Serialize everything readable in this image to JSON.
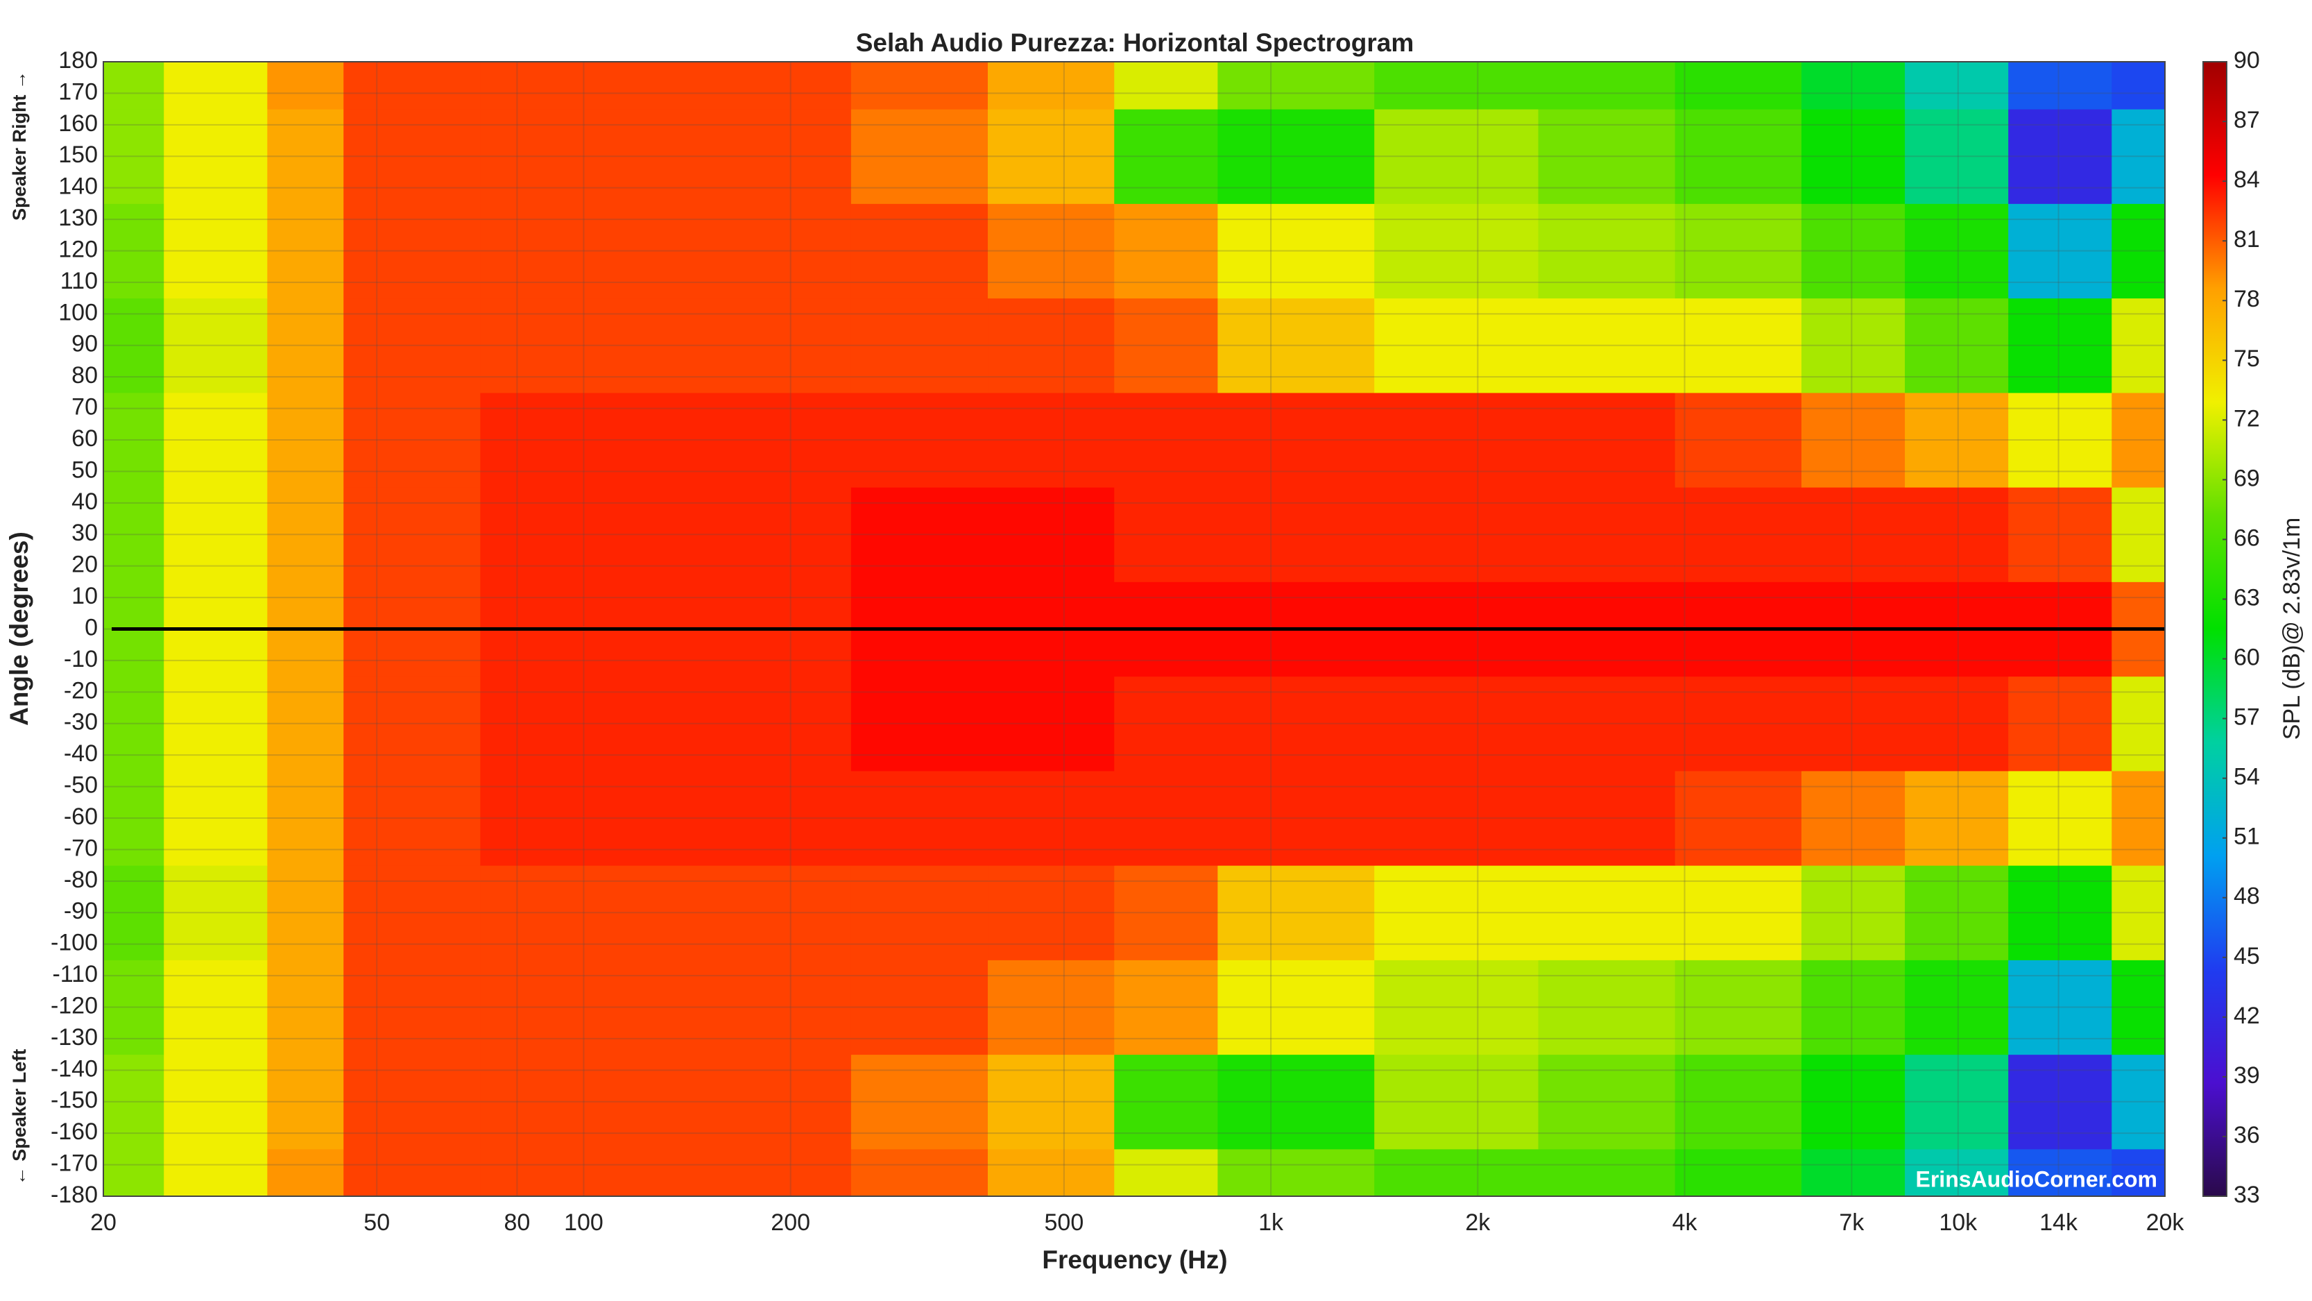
{
  "chart_data": {
    "type": "heatmap",
    "title": "Selah Audio Purezza: Horizontal Spectrogram",
    "x_label": "Frequency (Hz)",
    "y_label": "Angle (degrees)",
    "y_label_top": "Speaker Right →",
    "y_label_bottom": "← Speaker Left",
    "colorbar_label": "SPL (dB)@ 2.83v/1m",
    "watermark": "ErinsAudioCorner.com",
    "x_scale": "log",
    "xlim": [
      20,
      20000
    ],
    "xticks": [
      20,
      50,
      80,
      100,
      200,
      500,
      {
        "value": 1000,
        "label": "1k"
      },
      {
        "value": 2000,
        "label": "2k"
      },
      {
        "value": 4000,
        "label": "4k"
      },
      {
        "value": 7000,
        "label": "7k"
      },
      {
        "value": 10000,
        "label": "10k"
      },
      {
        "value": 14000,
        "label": "14k"
      },
      {
        "value": 20000,
        "label": "20k"
      }
    ],
    "ylim": [
      -180,
      180
    ],
    "yticks": [
      -180,
      -170,
      -160,
      -150,
      -140,
      -130,
      -120,
      -110,
      -100,
      -90,
      -80,
      -70,
      -60,
      -50,
      -40,
      -30,
      -20,
      -10,
      0,
      10,
      20,
      30,
      40,
      50,
      60,
      70,
      80,
      90,
      100,
      110,
      120,
      130,
      140,
      150,
      160,
      170,
      180
    ],
    "grid": true,
    "hline": 0,
    "clim": [
      33,
      90
    ],
    "cticks": [
      33,
      36,
      39,
      42,
      45,
      48,
      51,
      54,
      57,
      60,
      63,
      66,
      69,
      72,
      75,
      78,
      81,
      84,
      87,
      90
    ],
    "colormap": [
      "#2a0a4a",
      "#4b0fd0",
      "#1f3cf0",
      "#00a0f0",
      "#00d0a0",
      "#00e000",
      "#60e000",
      "#f0f000",
      "#ffa000",
      "#ff0000",
      "#a00000"
    ],
    "x": [
      20,
      30,
      40,
      50,
      100,
      200,
      300,
      500,
      700,
      1000,
      2000,
      3000,
      5000,
      7000,
      10000,
      14000,
      20000
    ],
    "y": [
      -180,
      -150,
      -120,
      -90,
      -60,
      -30,
      0,
      30,
      60,
      90,
      120,
      150,
      180
    ],
    "z": [
      [
        69,
        73,
        79,
        82,
        82,
        82,
        81,
        78,
        72,
        68,
        66,
        66,
        64,
        60,
        55,
        46,
        45
      ],
      [
        69,
        73,
        78,
        82,
        82,
        82,
        80,
        77,
        65,
        63,
        70,
        68,
        66,
        62,
        57,
        42,
        52
      ],
      [
        68,
        73,
        78,
        82,
        82,
        82,
        82,
        80,
        79,
        73,
        71,
        70,
        69,
        66,
        63,
        52,
        62
      ],
      [
        67,
        72,
        78,
        82,
        82,
        82,
        82,
        82,
        81,
        76,
        73,
        73,
        73,
        70,
        67,
        62,
        72
      ],
      [
        68,
        73,
        78,
        82,
        83,
        83,
        83,
        83,
        83,
        83,
        83,
        83,
        82,
        80,
        78,
        73,
        79
      ],
      [
        68,
        73,
        78,
        82,
        83,
        83,
        84,
        84,
        83,
        83,
        83,
        83,
        83,
        83,
        83,
        82,
        72
      ],
      [
        68,
        73,
        78,
        82,
        83,
        83,
        84,
        84,
        84,
        84,
        84,
        84,
        84,
        84,
        84,
        84,
        81
      ],
      [
        68,
        73,
        78,
        82,
        83,
        83,
        84,
        84,
        83,
        83,
        83,
        83,
        83,
        83,
        83,
        82,
        72
      ],
      [
        68,
        73,
        78,
        82,
        83,
        83,
        83,
        83,
        83,
        83,
        83,
        83,
        82,
        80,
        78,
        73,
        79
      ],
      [
        67,
        72,
        78,
        82,
        82,
        82,
        82,
        82,
        81,
        76,
        73,
        73,
        73,
        70,
        67,
        62,
        72
      ],
      [
        68,
        73,
        78,
        82,
        82,
        82,
        82,
        80,
        79,
        73,
        71,
        70,
        69,
        66,
        63,
        52,
        62
      ],
      [
        69,
        73,
        78,
        82,
        82,
        82,
        80,
        77,
        65,
        63,
        70,
        68,
        66,
        62,
        57,
        42,
        52
      ],
      [
        69,
        73,
        79,
        82,
        82,
        82,
        81,
        78,
        72,
        68,
        66,
        66,
        64,
        60,
        55,
        46,
        45
      ]
    ]
  }
}
